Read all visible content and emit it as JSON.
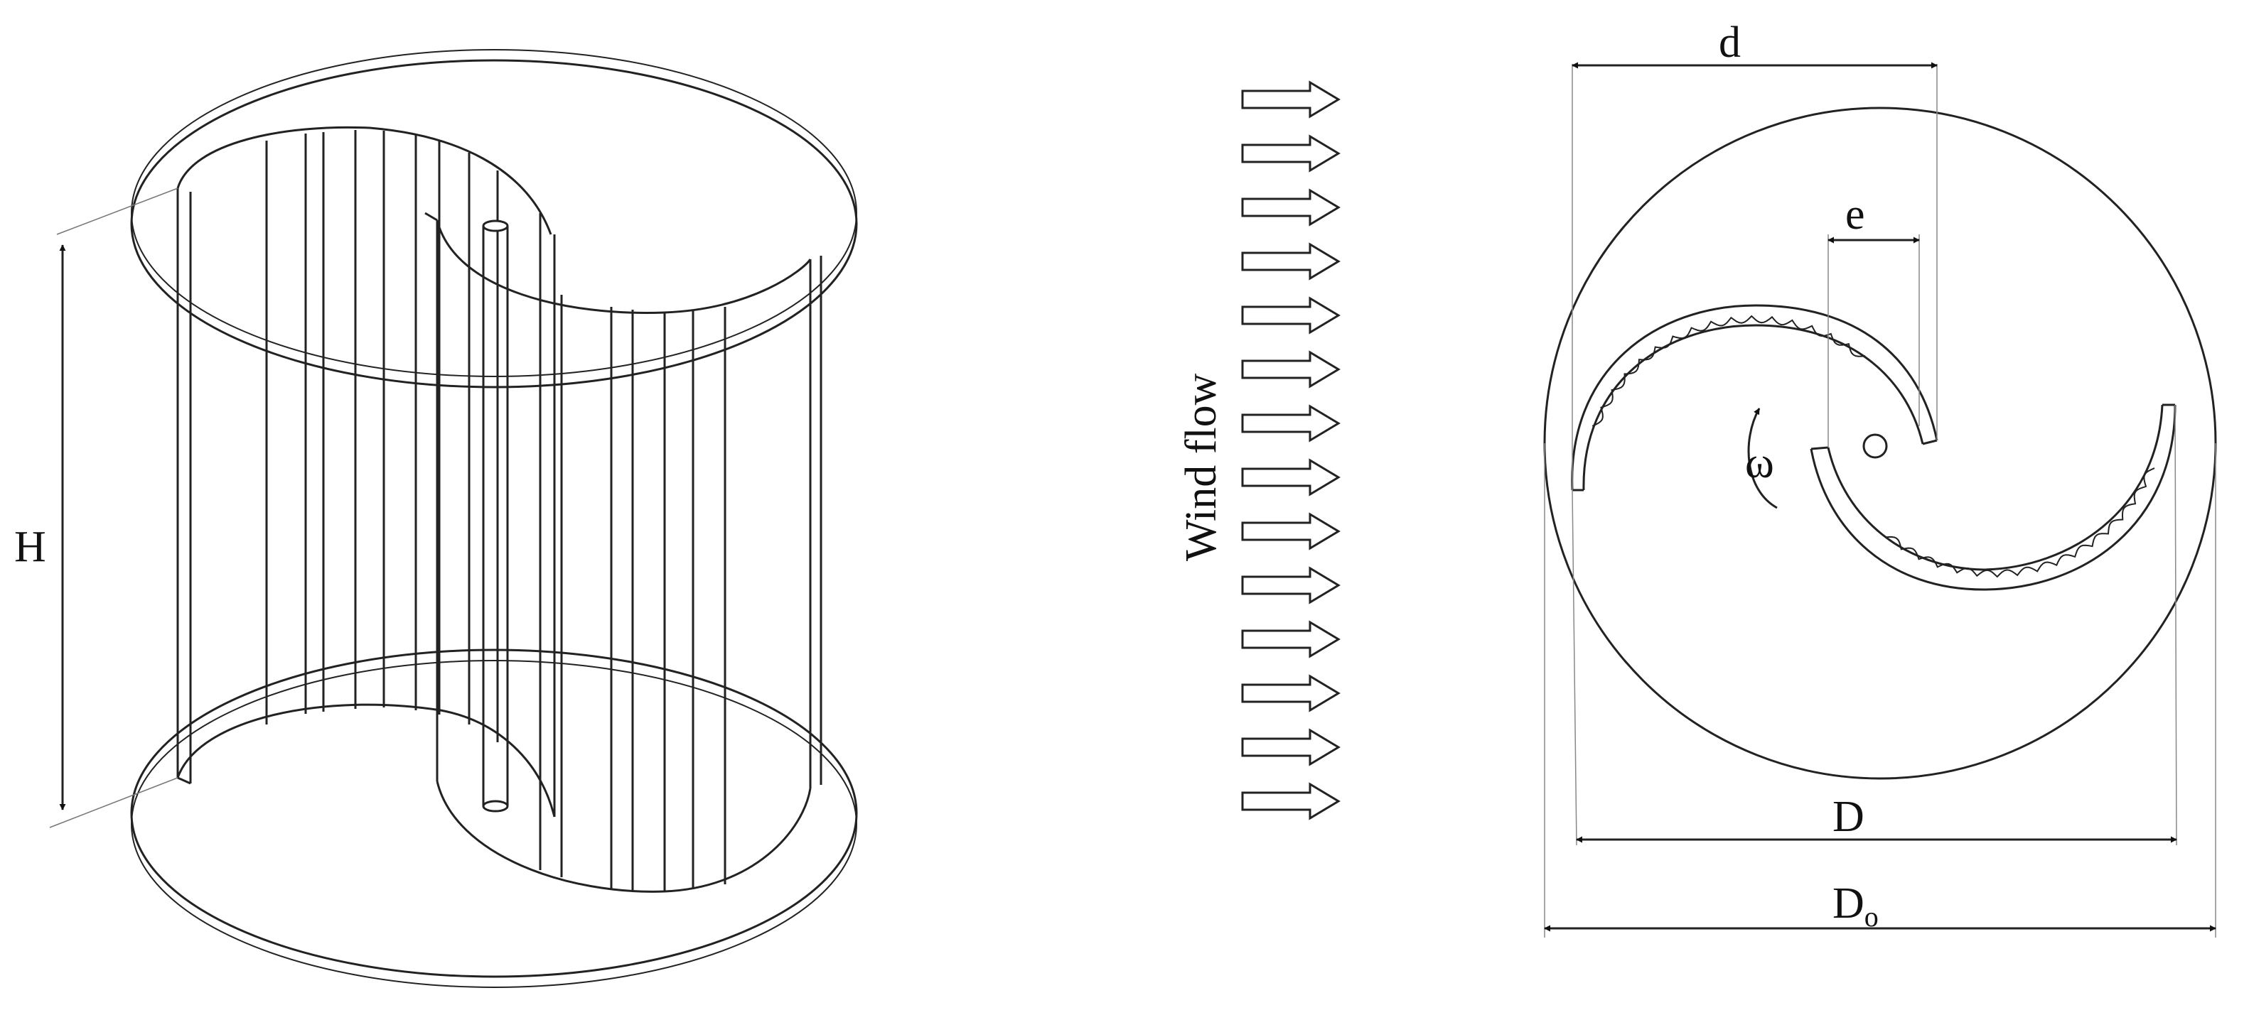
{
  "figure": {
    "left_view": {
      "height_label": "H"
    },
    "middle_view": {
      "wind_label": "Wind flow",
      "arrow_count": 14
    },
    "right_view": {
      "labels": {
        "d": "d",
        "e": "e",
        "omega": "ω",
        "D": "D",
        "D_outer": "D",
        "D_outer_sub": "o"
      }
    }
  },
  "colors": {
    "line": "#222222",
    "fill": "#ffffff"
  }
}
